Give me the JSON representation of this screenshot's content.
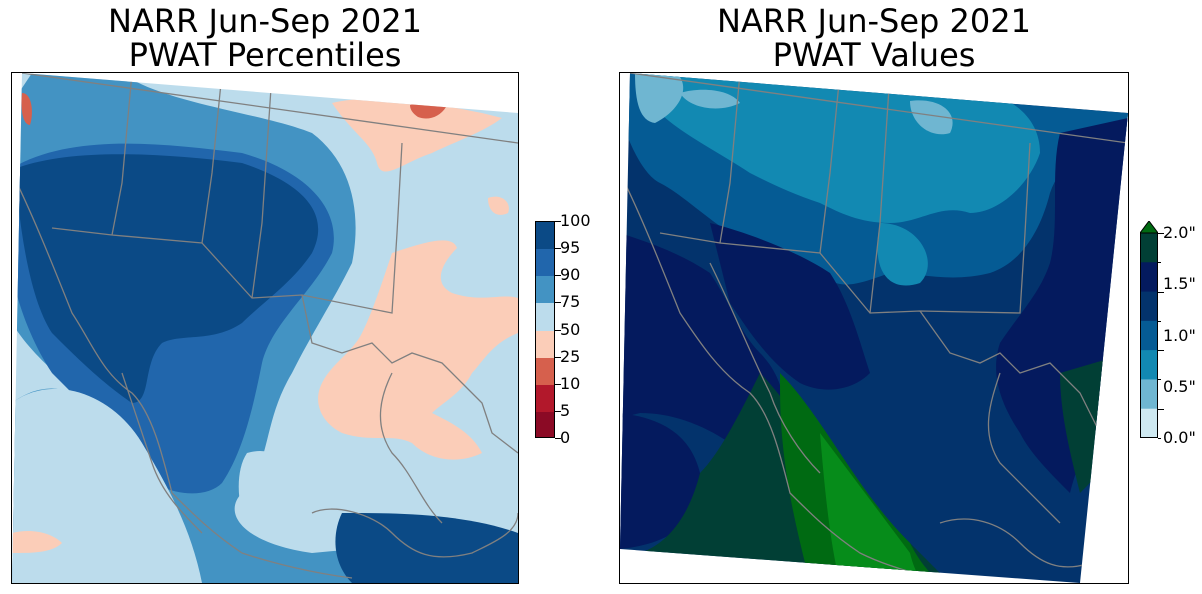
{
  "panels": [
    {
      "title_line1": "NARR Jun-Sep 2021",
      "title_line2": "PWAT Percentiles"
    },
    {
      "title_line1": "NARR Jun-Sep 2021",
      "title_line2": "PWAT Values"
    }
  ],
  "colorbars": {
    "percentiles": {
      "ticks": [
        "100",
        "95",
        "90",
        "75",
        "50",
        "25",
        "10",
        "5",
        "0"
      ],
      "colors": [
        "#0b4a86",
        "#2166ac",
        "#4393c3",
        "#bcdcec",
        "#fbcdb8",
        "#d6604d",
        "#b2182b",
        "#8b0a25"
      ]
    },
    "values": {
      "ticks": [
        "2.0\"",
        "1.5\"",
        "1.0\"",
        "0.5\"",
        "0.0\""
      ],
      "colors": [
        "#006a12",
        "#013f35",
        "#041a5e",
        "#03336c",
        "#055b94",
        "#1289b2",
        "#6fb6d1",
        "#cfe9f1"
      ]
    }
  },
  "map_colors": {
    "boundary": "#808080"
  }
}
